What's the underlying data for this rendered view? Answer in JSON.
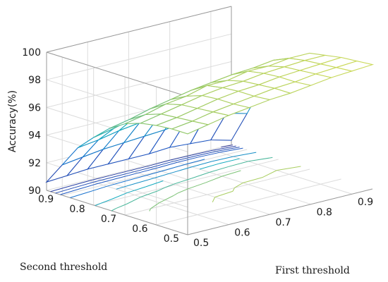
{
  "chart_data": {
    "type": "surface3d",
    "title": "",
    "xlabel": "First threshold",
    "ylabel": "Second threshold",
    "zlabel": "Accuracy(%)",
    "x_ticks": [
      "0.5",
      "0.6",
      "0.7",
      "0.8",
      "0.9"
    ],
    "y_ticks": [
      "0.5",
      "0.6",
      "0.7",
      "0.8",
      "0.9"
    ],
    "z_ticks": [
      "90",
      "92",
      "94",
      "96",
      "98",
      "100"
    ],
    "xlim": [
      0.5,
      0.95
    ],
    "ylim": [
      0.5,
      0.95
    ],
    "zlim": [
      90,
      100
    ],
    "grid": true,
    "colormap": "parula",
    "note_values": "Accuracy ~98-99 for small first threshold, dropping toward ~90 as first threshold rises; drop occurs earlier for large second threshold.",
    "x": [
      0.5,
      0.55,
      0.6,
      0.65,
      0.7,
      0.75,
      0.8,
      0.85,
      0.9,
      0.95
    ],
    "y": [
      0.5,
      0.55,
      0.6,
      0.65,
      0.7,
      0.75,
      0.8,
      0.85,
      0.9,
      0.95
    ],
    "z": [
      [
        97.3,
        97.6,
        97.9,
        98.1,
        98.3,
        98.4,
        98.6,
        98.8,
        98.9,
        99.0
      ],
      [
        97.3,
        97.5,
        97.8,
        98.0,
        98.2,
        98.4,
        98.5,
        98.7,
        98.8,
        98.9
      ],
      [
        97.2,
        97.4,
        97.7,
        98.0,
        98.2,
        98.3,
        98.5,
        98.6,
        98.7,
        98.8
      ],
      [
        97.0,
        97.3,
        97.6,
        97.9,
        98.1,
        98.2,
        98.4,
        98.5,
        98.6,
        98.6
      ],
      [
        96.6,
        96.9,
        97.3,
        97.5,
        97.9,
        97.9,
        98.2,
        98.2,
        98.4,
        98.4
      ],
      [
        95.9,
        96.2,
        96.6,
        96.9,
        97.2,
        97.4,
        97.6,
        97.7,
        97.9,
        97.7
      ],
      [
        94.9,
        95.2,
        95.6,
        95.8,
        96.2,
        96.4,
        96.7,
        96.8,
        97.0,
        96.6
      ],
      [
        93.8,
        94.0,
        94.3,
        94.5,
        94.7,
        95.0,
        95.2,
        95.4,
        95.4,
        95.0
      ],
      [
        92.2,
        92.4,
        92.6,
        92.7,
        92.8,
        92.9,
        93.1,
        93.2,
        93.0,
        92.6
      ],
      [
        90.6,
        90.7,
        90.8,
        90.8,
        90.8,
        90.8,
        90.9,
        90.8,
        90.7,
        90.3
      ]
    ]
  }
}
